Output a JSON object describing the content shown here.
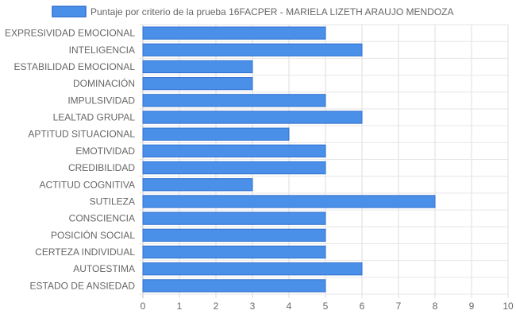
{
  "chart_data": {
    "type": "bar",
    "orientation": "horizontal",
    "categories": [
      "EXPRESIVIDAD EMOCIONAL",
      "INTELIGENCIA",
      "ESTABILIDAD EMOCIONAL",
      "DOMINACIÓN",
      "IMPULSIVIDAD",
      "LEALTAD GRUPAL",
      "APTITUD SITUACIONAL",
      "EMOTIVIDAD",
      "CREDIBILIDAD",
      "ACTITUD COGNITIVA",
      "SUTILEZA",
      "CONSCIENCIA",
      "POSICIÓN SOCIAL",
      "CERTEZA INDIVIDUAL",
      "AUTOESTIMA",
      "ESTADO DE ANSIEDAD"
    ],
    "series": [
      {
        "name": "Puntaje por criterio de la prueba 16FACPER - MARIELA LIZETH ARAUJO MENDOZA",
        "values": [
          5,
          6,
          3,
          3,
          5,
          6,
          4,
          5,
          5,
          3,
          8,
          5,
          5,
          5,
          6,
          5
        ],
        "color": "#4a90e8",
        "border_color": "#2f6fd0"
      }
    ],
    "xlim": [
      0,
      10
    ],
    "xticks": [
      "0",
      "1",
      "2",
      "3",
      "4",
      "5",
      "6",
      "7",
      "8",
      "9",
      "10"
    ],
    "grid": true,
    "legend_position": "top"
  }
}
